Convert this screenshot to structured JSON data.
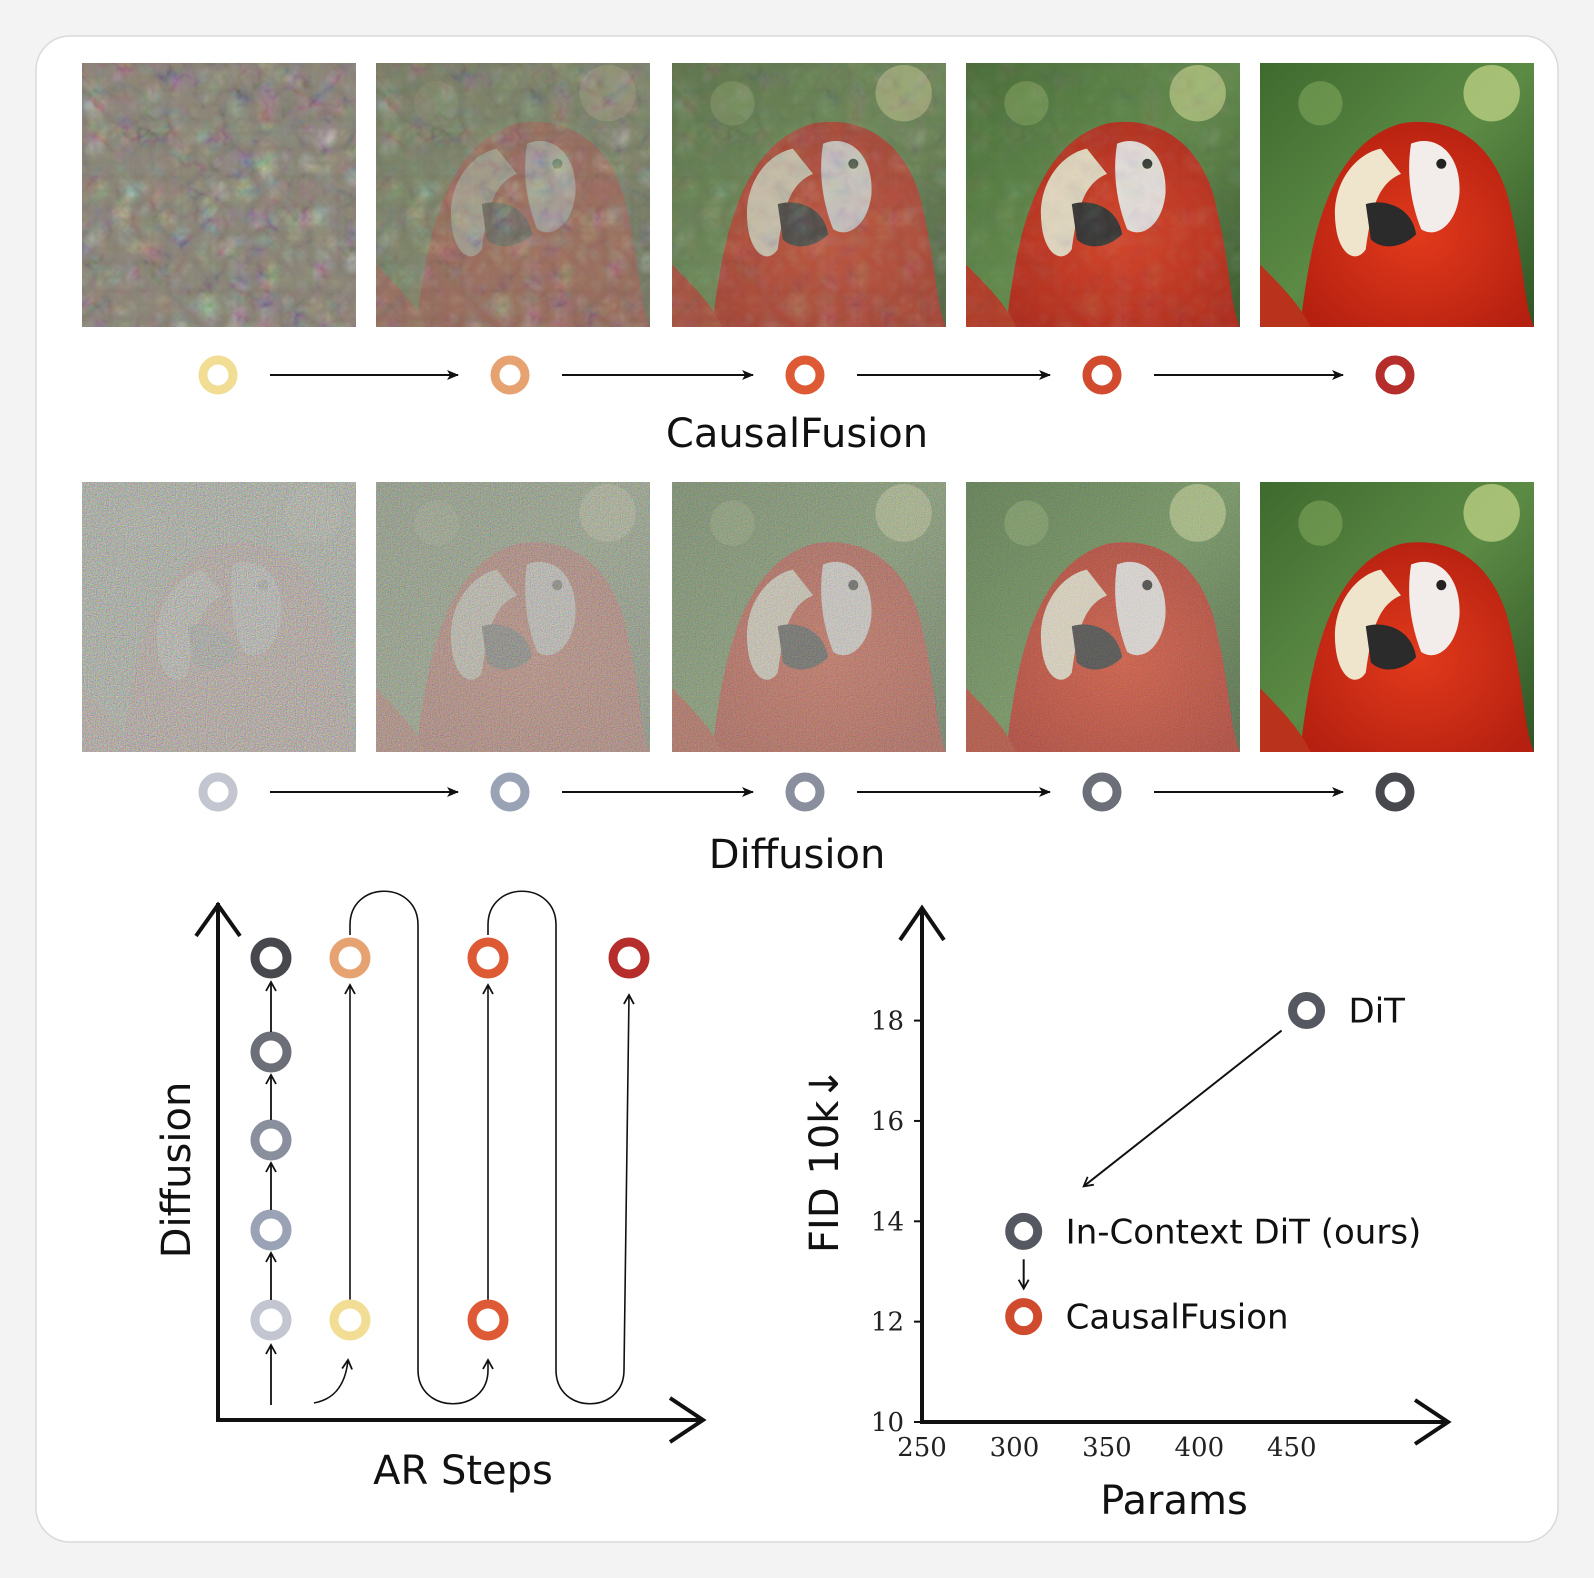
{
  "rows": [
    {
      "label": "CausalFusion",
      "image_caption": "parrot",
      "step_colors": [
        "#f2dd95",
        "#e7a272",
        "#de5a35",
        "#d24b2e",
        "#b52e2b"
      ]
    },
    {
      "label": "Diffusion",
      "image_caption": "parrot",
      "step_colors": [
        "#c3c6d1",
        "#9aa2b5",
        "#8a8f9e",
        "#6c6f78",
        "#46484d"
      ]
    }
  ],
  "schematic": {
    "y_label": "Diffusion",
    "x_label": "AR Steps",
    "diffusion_column_colors": [
      "#46484d",
      "#6c6f78",
      "#8a8f9e",
      "#9aa2b5",
      "#c3c6d1"
    ],
    "ar_top_colors": [
      "#e7a272",
      "#de5a35",
      "#b52e2b"
    ],
    "ar_bottom_colors": [
      "#f2dd95",
      "#de5a35"
    ]
  },
  "chart_data": {
    "type": "scatter",
    "xlabel": "Params",
    "ylabel": "FID 10k↓",
    "xlim": [
      250,
      510
    ],
    "ylim": [
      10,
      20
    ],
    "x_ticks": [
      250,
      300,
      350,
      400,
      450
    ],
    "y_ticks": [
      10,
      12,
      14,
      16,
      18
    ],
    "points": [
      {
        "name": "DiT",
        "x": 458,
        "y": 18.2,
        "color": "#555860"
      },
      {
        "name": "In-Context DiT (ours)",
        "x": 305,
        "y": 13.8,
        "color": "#555860"
      },
      {
        "name": "CausalFusion",
        "x": 305,
        "y": 12.1,
        "color": "#d04a2e"
      }
    ]
  }
}
